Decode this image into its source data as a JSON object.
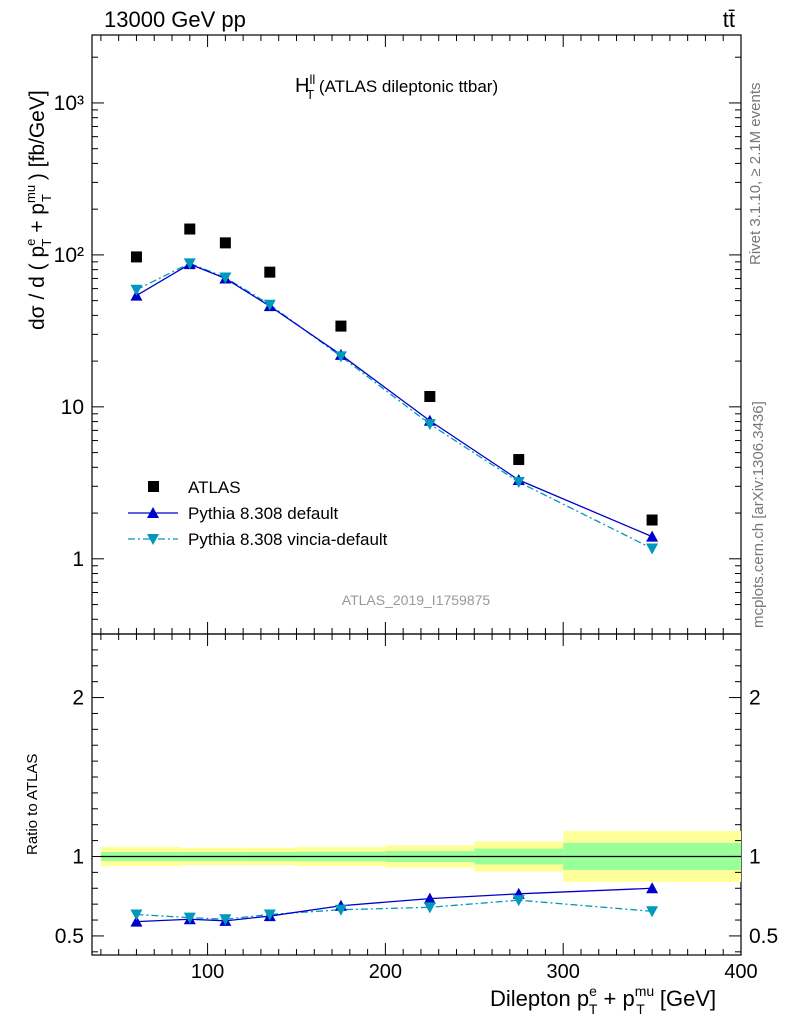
{
  "header": {
    "energy": "13000 GeV pp",
    "process": "tt̄"
  },
  "rivet_note": "Rivet 3.1.10, ≥ 2.1M events",
  "source_note": "mcplots.cern.ch [arXiv:1306.3436]",
  "analysis_id": "ATLAS_2019_I1759875",
  "plot_title": {
    "main": "H",
    "sup": "ll",
    "sub": "T",
    "rest": " (ATLAS dileptonic ttbar)"
  },
  "ylabel_top": "dσ / d ( p_T^e + p_T^mu ) [fb/GeV]",
  "ylabel_ratio": "Ratio to ATLAS",
  "xlabel": "Dilepton p_T^e + p_T^mu [GeV]",
  "legend": [
    {
      "label": "ATLAS",
      "marker": "square",
      "color": "#000000"
    },
    {
      "label": "Pythia 8.308 default",
      "marker": "triangle-up",
      "color": "#0000cc",
      "line": "solid"
    },
    {
      "label": "Pythia 8.308 vincia-default",
      "marker": "triangle-down",
      "color": "#0099bb",
      "line": "dash-dot"
    }
  ],
  "colors": {
    "band_outer": "#ffff99",
    "band_inner": "#99ff99",
    "frame": "#000000"
  },
  "chart_data": [
    {
      "type": "scatter",
      "panel": "main",
      "yscale": "log",
      "xlim": [
        35,
        400
      ],
      "ylim": [
        0.32,
        2800
      ],
      "x_edges": [
        35,
        85,
        100,
        120,
        150,
        200,
        250,
        300,
        400
      ],
      "ytick_labels": [
        "1",
        "10",
        "10²",
        "10³"
      ],
      "series": [
        {
          "name": "ATLAS",
          "x": [
            60,
            90,
            110,
            135,
            175,
            225,
            275,
            350
          ],
          "values": [
            97,
            148,
            120,
            77,
            34,
            11.7,
            4.5,
            1.8
          ]
        },
        {
          "name": "Pythia 8.308 default",
          "x": [
            60,
            90,
            110,
            135,
            175,
            225,
            275,
            350
          ],
          "values": [
            54,
            87,
            70,
            46,
            22,
            8.1,
            3.3,
            1.4
          ]
        },
        {
          "name": "Pythia 8.308 vincia-default",
          "x": [
            60,
            90,
            110,
            135,
            175,
            225,
            275,
            350
          ],
          "values": [
            59,
            88,
            71,
            47,
            21.5,
            7.7,
            3.2,
            1.17
          ]
        }
      ]
    },
    {
      "type": "line",
      "panel": "ratio",
      "xlim": [
        35,
        400
      ],
      "ylim": [
        0.38,
        2.4
      ],
      "ytick_labels": [
        "0.5",
        "1",
        "2"
      ],
      "xtick_labels": [
        "100",
        "200",
        "300",
        "400"
      ],
      "bands": {
        "x_edges": [
          40,
          85,
          120,
          150,
          200,
          250,
          300,
          400
        ],
        "inner_halfwidth": [
          0.028,
          0.028,
          0.028,
          0.03,
          0.035,
          0.05,
          0.085
        ],
        "outer_halfwidth": [
          0.06,
          0.055,
          0.055,
          0.06,
          0.07,
          0.095,
          0.16
        ]
      },
      "series": [
        {
          "name": "Pythia 8.308 default",
          "x": [
            60,
            90,
            110,
            135,
            175,
            225,
            275,
            350
          ],
          "values": [
            0.59,
            0.605,
            0.595,
            0.625,
            0.69,
            0.735,
            0.765,
            0.8
          ],
          "errors": [
            0.01,
            0.01,
            0.01,
            0.01,
            0.01,
            0.012,
            0.02,
            0.025
          ]
        },
        {
          "name": "Pythia 8.308 vincia-default",
          "x": [
            60,
            90,
            110,
            135,
            175,
            225,
            275,
            350
          ],
          "values": [
            0.635,
            0.615,
            0.605,
            0.635,
            0.665,
            0.68,
            0.725,
            0.655
          ],
          "errors": [
            0.01,
            0.01,
            0.01,
            0.01,
            0.01,
            0.015,
            0.022,
            0.025
          ]
        }
      ]
    }
  ]
}
